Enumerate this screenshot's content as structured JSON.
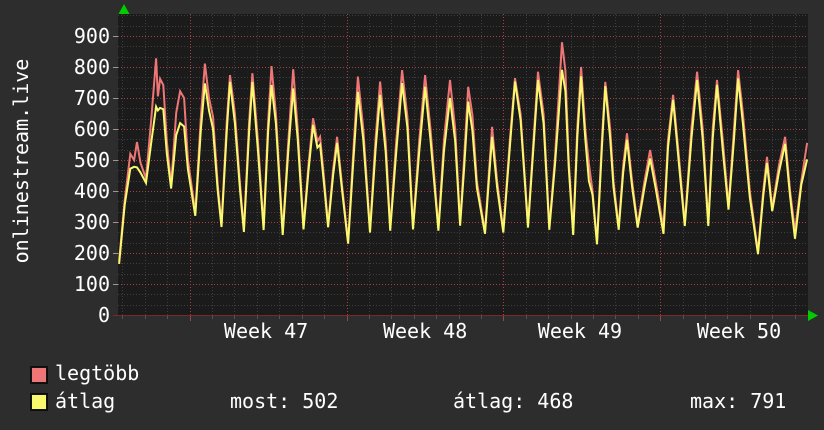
{
  "title": "onlinestream.live",
  "colors": {
    "background": "#2d2d2d",
    "plot_background": "#1b1b1b",
    "grid_major_red": "#a64242",
    "grid_minor_gray": "#3e3e3e",
    "axis_line": "#772b2b",
    "arrow_green": "#00cc00",
    "text": "#ffffff",
    "series_legtobb": "#ee7676",
    "series_atlag": "#f9f96e"
  },
  "legend": [
    {
      "label": "legtöbb",
      "color": "#ee7676"
    },
    {
      "label": "átlag",
      "color": "#f9f96e"
    }
  ],
  "stats": [
    {
      "text": "most: 502"
    },
    {
      "text": "átlag: 468"
    },
    {
      "text": "max: 791"
    }
  ],
  "chart_data": {
    "type": "line",
    "title": "onlinestream.live",
    "xlabel": "",
    "ylabel": "",
    "ylim": [
      0,
      966
    ],
    "y_ticks": [
      0,
      100,
      200,
      300,
      400,
      500,
      600,
      700,
      800,
      900
    ],
    "y_major_step": 100,
    "y_minor_step": 33.333,
    "grid": true,
    "legend_position": "bottom-left",
    "x_unit": "days",
    "x_range_days": [
      0,
      30.8
    ],
    "day_grid_start_day": 0.2,
    "week_boundaries_days": [
      3.2,
      10.2,
      17.2,
      24.2
    ],
    "week_labels": [
      "Week 47",
      "Week 48",
      "Week 49",
      "Week 50"
    ],
    "week_label_centers_days": [
      6.61,
      13.71,
      20.62,
      27.72
    ],
    "series": [
      {
        "name": "legtöbb",
        "color": "#ee7676",
        "max": 880
      },
      {
        "name": "átlag",
        "color": "#f9f96e",
        "current": 502,
        "average": 468,
        "max": 791
      }
    ],
    "points_format": [
      "day",
      "legtöbb",
      "átlag"
    ],
    "points": [
      [
        0.05,
        175,
        165
      ],
      [
        0.3,
        370,
        355
      ],
      [
        0.55,
        520,
        472
      ],
      [
        0.72,
        500,
        478
      ],
      [
        0.85,
        558,
        476
      ],
      [
        1.0,
        492,
        460
      ],
      [
        1.25,
        440,
        426
      ],
      [
        1.5,
        645,
        565
      ],
      [
        1.7,
        828,
        672
      ],
      [
        1.78,
        705,
        660
      ],
      [
        1.88,
        762,
        668
      ],
      [
        2.02,
        742,
        664
      ],
      [
        2.18,
        562,
        522
      ],
      [
        2.37,
        419,
        408
      ],
      [
        2.6,
        652,
        580
      ],
      [
        2.77,
        722,
        619
      ],
      [
        2.95,
        700,
        608
      ],
      [
        3.12,
        502,
        470
      ],
      [
        3.45,
        332,
        320
      ],
      [
        3.7,
        640,
        600
      ],
      [
        3.88,
        811,
        747
      ],
      [
        4.06,
        700,
        660
      ],
      [
        4.24,
        640,
        600
      ],
      [
        4.45,
        422,
        402
      ],
      [
        4.62,
        292,
        284
      ],
      [
        4.85,
        620,
        590
      ],
      [
        5.0,
        774,
        752
      ],
      [
        5.22,
        650,
        618
      ],
      [
        5.45,
        420,
        400
      ],
      [
        5.62,
        276,
        268
      ],
      [
        5.85,
        622,
        590
      ],
      [
        6.0,
        780,
        752
      ],
      [
        6.25,
        560,
        528
      ],
      [
        6.5,
        282,
        274
      ],
      [
        6.7,
        622,
        590
      ],
      [
        6.85,
        803,
        742
      ],
      [
        7.05,
        650,
        618
      ],
      [
        7.35,
        266,
        258
      ],
      [
        7.6,
        560,
        530
      ],
      [
        7.82,
        793,
        731
      ],
      [
        8.02,
        600,
        568
      ],
      [
        8.28,
        284,
        276
      ],
      [
        8.5,
        482,
        462
      ],
      [
        8.71,
        635,
        613
      ],
      [
        8.9,
        560,
        540
      ],
      [
        9.02,
        575,
        550
      ],
      [
        9.2,
        440,
        420
      ],
      [
        9.38,
        290,
        283
      ],
      [
        9.6,
        470,
        450
      ],
      [
        9.78,
        575,
        555
      ],
      [
        10.0,
        420,
        404
      ],
      [
        10.27,
        236,
        230
      ],
      [
        10.5,
        520,
        490
      ],
      [
        10.71,
        769,
        720
      ],
      [
        10.95,
        600,
        565
      ],
      [
        11.25,
        274,
        266
      ],
      [
        11.5,
        570,
        535
      ],
      [
        11.7,
        753,
        710
      ],
      [
        11.95,
        560,
        525
      ],
      [
        12.15,
        280,
        272
      ],
      [
        12.42,
        560,
        525
      ],
      [
        12.68,
        790,
        748
      ],
      [
        12.92,
        640,
        605
      ],
      [
        13.17,
        284,
        276
      ],
      [
        13.45,
        565,
        530
      ],
      [
        13.71,
        774,
        736
      ],
      [
        13.95,
        600,
        565
      ],
      [
        14.3,
        280,
        272
      ],
      [
        14.55,
        565,
        530
      ],
      [
        14.82,
        758,
        700
      ],
      [
        15.05,
        600,
        560
      ],
      [
        15.27,
        296,
        288
      ],
      [
        15.45,
        505,
        472
      ],
      [
        15.63,
        736,
        688
      ],
      [
        15.82,
        645,
        595
      ],
      [
        16.02,
        430,
        410
      ],
      [
        16.38,
        269,
        262
      ],
      [
        16.55,
        455,
        432
      ],
      [
        16.7,
        607,
        575
      ],
      [
        16.92,
        432,
        412
      ],
      [
        17.2,
        274,
        266
      ],
      [
        17.5,
        570,
        548
      ],
      [
        17.72,
        764,
        753
      ],
      [
        17.97,
        648,
        628
      ],
      [
        18.3,
        290,
        282
      ],
      [
        18.55,
        570,
        548
      ],
      [
        18.75,
        785,
        758
      ],
      [
        19.0,
        648,
        618
      ],
      [
        19.25,
        283,
        275
      ],
      [
        19.5,
        505,
        482
      ],
      [
        19.82,
        880,
        791
      ],
      [
        19.97,
        788,
        722
      ],
      [
        20.12,
        502,
        478
      ],
      [
        20.32,
        265,
        258
      ],
      [
        20.5,
        605,
        572
      ],
      [
        20.67,
        800,
        770
      ],
      [
        20.86,
        600,
        568
      ],
      [
        21.02,
        488,
        432
      ],
      [
        21.18,
        400,
        388
      ],
      [
        21.38,
        235,
        228
      ],
      [
        21.6,
        565,
        540
      ],
      [
        21.75,
        752,
        738
      ],
      [
        21.97,
        600,
        568
      ],
      [
        22.12,
        432,
        412
      ],
      [
        22.35,
        283,
        275
      ],
      [
        22.55,
        482,
        460
      ],
      [
        22.72,
        586,
        565
      ],
      [
        22.95,
        432,
        414
      ],
      [
        23.2,
        290,
        282
      ],
      [
        23.5,
        432,
        412
      ],
      [
        23.75,
        532,
        505
      ],
      [
        24.0,
        430,
        408
      ],
      [
        24.35,
        280,
        262
      ],
      [
        24.55,
        565,
        540
      ],
      [
        24.78,
        710,
        694
      ],
      [
        25.05,
        502,
        478
      ],
      [
        25.3,
        295,
        287
      ],
      [
        25.6,
        605,
        572
      ],
      [
        25.85,
        785,
        758
      ],
      [
        26.1,
        600,
        568
      ],
      [
        26.35,
        295,
        287
      ],
      [
        26.55,
        605,
        572
      ],
      [
        26.74,
        758,
        742
      ],
      [
        27.0,
        560,
        528
      ],
      [
        27.25,
        350,
        340
      ],
      [
        27.5,
        605,
        572
      ],
      [
        27.68,
        790,
        763
      ],
      [
        27.9,
        648,
        615
      ],
      [
        28.2,
        400,
        380
      ],
      [
        28.57,
        204,
        196
      ],
      [
        28.8,
        400,
        382
      ],
      [
        28.97,
        510,
        490
      ],
      [
        29.2,
        345,
        335
      ],
      [
        29.5,
        482,
        460
      ],
      [
        29.78,
        575,
        552
      ],
      [
        30.0,
        400,
        382
      ],
      [
        30.22,
        270,
        246
      ],
      [
        30.5,
        432,
        420
      ],
      [
        30.76,
        555,
        502
      ]
    ],
    "stats": {
      "most": 502,
      "atlag": 468,
      "max": 791
    }
  }
}
